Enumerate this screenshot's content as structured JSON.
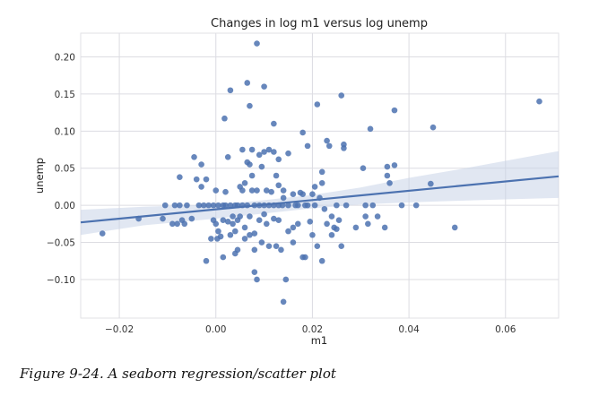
{
  "chart_data": {
    "type": "scatter",
    "title": "Changes in log m1 versus log unemp",
    "xlabel": "m1",
    "ylabel": "unemp",
    "xlim": [
      -0.028,
      0.071
    ],
    "ylim": [
      -0.152,
      0.232
    ],
    "xticks": [
      -0.02,
      0.0,
      0.02,
      0.04,
      0.06
    ],
    "xtick_labels": [
      "−0.02",
      "0.00",
      "0.02",
      "0.04",
      "0.06"
    ],
    "yticks": [
      -0.1,
      -0.05,
      0.0,
      0.05,
      0.1,
      0.15,
      0.2
    ],
    "ytick_labels": [
      "−0.10",
      "−0.05",
      "0.00",
      "0.05",
      "0.10",
      "0.15",
      "0.20"
    ],
    "grid": true,
    "colors": {
      "points": "#4c72b0",
      "line": "#4c72b0",
      "band": "#c9d4e8",
      "grid": "#dcdce2"
    },
    "regression": {
      "x": [
        -0.028,
        0.071
      ],
      "y": [
        -0.023,
        0.039
      ]
    },
    "confidence_band": {
      "x": [
        -0.028,
        -0.015,
        0.0,
        0.01,
        0.02,
        0.03,
        0.04,
        0.05,
        0.06,
        0.071
      ],
      "lower": [
        -0.04,
        -0.027,
        -0.018,
        -0.011,
        -0.004,
        0.001,
        0.004,
        0.006,
        0.008,
        0.01
      ],
      "upper": [
        -0.006,
        -0.002,
        0.001,
        0.007,
        0.014,
        0.024,
        0.037,
        0.048,
        0.06,
        0.073
      ]
    },
    "points": [
      [
        -0.0235,
        -0.038
      ],
      [
        -0.016,
        -0.018
      ],
      [
        -0.011,
        -0.018
      ],
      [
        -0.0105,
        0.0
      ],
      [
        -0.009,
        -0.025
      ],
      [
        -0.008,
        -0.025
      ],
      [
        -0.0085,
        0.0
      ],
      [
        -0.0075,
        0.0
      ],
      [
        -0.007,
        -0.02
      ],
      [
        -0.0065,
        -0.025
      ],
      [
        -0.0075,
        0.038
      ],
      [
        -0.006,
        0.0
      ],
      [
        -0.005,
        -0.018
      ],
      [
        -0.0045,
        0.065
      ],
      [
        -0.004,
        0.035
      ],
      [
        -0.0035,
        0.0
      ],
      [
        -0.003,
        0.055
      ],
      [
        -0.003,
        0.025
      ],
      [
        -0.0025,
        0.0
      ],
      [
        -0.002,
        0.035
      ],
      [
        -0.002,
        -0.075
      ],
      [
        -0.0015,
        0.0
      ],
      [
        -0.001,
        -0.045
      ],
      [
        -0.0005,
        -0.02
      ],
      [
        -0.0005,
        0.0
      ],
      [
        0.0,
        -0.025
      ],
      [
        0.0,
        0.02
      ],
      [
        0.0003,
        -0.045
      ],
      [
        0.0005,
        -0.035
      ],
      [
        0.0005,
        0.0
      ],
      [
        0.001,
        -0.042
      ],
      [
        0.0015,
        0.0
      ],
      [
        0.0015,
        -0.02
      ],
      [
        0.002,
        0.0
      ],
      [
        0.002,
        0.018
      ],
      [
        0.0025,
        -0.022
      ],
      [
        0.0015,
        -0.07
      ],
      [
        0.0018,
        0.117
      ],
      [
        0.0025,
        0.065
      ],
      [
        0.003,
        0.155
      ],
      [
        0.003,
        -0.04
      ],
      [
        0.003,
        0.0
      ],
      [
        0.0035,
        -0.015
      ],
      [
        0.0035,
        -0.025
      ],
      [
        0.004,
        -0.035
      ],
      [
        0.004,
        0.0
      ],
      [
        0.004,
        -0.065
      ],
      [
        0.0045,
        -0.06
      ],
      [
        0.0045,
        -0.02
      ],
      [
        0.0045,
        0.0
      ],
      [
        0.005,
        0.025
      ],
      [
        0.005,
        -0.015
      ],
      [
        0.0055,
        0.075
      ],
      [
        0.0055,
        0.02
      ],
      [
        0.0055,
        0.0
      ],
      [
        0.006,
        -0.045
      ],
      [
        0.006,
        -0.03
      ],
      [
        0.006,
        0.03
      ],
      [
        0.0065,
        0.165
      ],
      [
        0.0065,
        0.058
      ],
      [
        0.0065,
        0.0
      ],
      [
        0.007,
        0.134
      ],
      [
        0.007,
        -0.04
      ],
      [
        0.007,
        -0.015
      ],
      [
        0.007,
        0.055
      ],
      [
        0.0075,
        0.075
      ],
      [
        0.0075,
        0.04
      ],
      [
        0.0075,
        0.02
      ],
      [
        0.008,
        -0.09
      ],
      [
        0.008,
        -0.06
      ],
      [
        0.008,
        -0.038
      ],
      [
        0.008,
        0.0
      ],
      [
        0.0085,
        0.218
      ],
      [
        0.0085,
        -0.1
      ],
      [
        0.0085,
        0.02
      ],
      [
        0.009,
        0.068
      ],
      [
        0.009,
        -0.02
      ],
      [
        0.009,
        0.0
      ],
      [
        0.0095,
        0.052
      ],
      [
        0.0095,
        -0.05
      ],
      [
        0.01,
        0.16
      ],
      [
        0.01,
        0.072
      ],
      [
        0.01,
        -0.012
      ],
      [
        0.01,
        0.0
      ],
      [
        0.0105,
        -0.025
      ],
      [
        0.0105,
        0.02
      ],
      [
        0.011,
        0.075
      ],
      [
        0.011,
        -0.055
      ],
      [
        0.011,
        0.0
      ],
      [
        0.0115,
        0.018
      ],
      [
        0.012,
        0.11
      ],
      [
        0.012,
        0.072
      ],
      [
        0.012,
        -0.018
      ],
      [
        0.012,
        0.0
      ],
      [
        0.0125,
        -0.055
      ],
      [
        0.0125,
        0.04
      ],
      [
        0.013,
        0.062
      ],
      [
        0.013,
        0.027
      ],
      [
        0.013,
        -0.02
      ],
      [
        0.013,
        0.0
      ],
      [
        0.0135,
        -0.06
      ],
      [
        0.0138,
        0.0
      ],
      [
        0.014,
        -0.13
      ],
      [
        0.014,
        0.02
      ],
      [
        0.014,
        0.01
      ],
      [
        0.0145,
        -0.1
      ],
      [
        0.015,
        -0.035
      ],
      [
        0.015,
        0.0
      ],
      [
        0.015,
        0.07
      ],
      [
        0.016,
        -0.05
      ],
      [
        0.016,
        -0.03
      ],
      [
        0.016,
        0.015
      ],
      [
        0.0165,
        0.0
      ],
      [
        0.017,
        -0.025
      ],
      [
        0.017,
        0.0
      ],
      [
        0.0175,
        0.017
      ],
      [
        0.018,
        -0.07
      ],
      [
        0.018,
        0.098
      ],
      [
        0.018,
        0.015
      ],
      [
        0.0185,
        -0.07
      ],
      [
        0.0185,
        0.0
      ],
      [
        0.019,
        0.08
      ],
      [
        0.019,
        0.0
      ],
      [
        0.0195,
        -0.022
      ],
      [
        0.02,
        -0.04
      ],
      [
        0.02,
        0.015
      ],
      [
        0.0205,
        0.025
      ],
      [
        0.0205,
        0.0
      ],
      [
        0.021,
        -0.055
      ],
      [
        0.021,
        0.136
      ],
      [
        0.0215,
        0.01
      ],
      [
        0.022,
        -0.075
      ],
      [
        0.022,
        0.045
      ],
      [
        0.022,
        0.03
      ],
      [
        0.0225,
        -0.005
      ],
      [
        0.023,
        -0.025
      ],
      [
        0.023,
        0.087
      ],
      [
        0.0235,
        0.08
      ],
      [
        0.024,
        -0.04
      ],
      [
        0.024,
        -0.015
      ],
      [
        0.0245,
        -0.03
      ],
      [
        0.025,
        -0.032
      ],
      [
        0.025,
        0.0
      ],
      [
        0.0255,
        -0.02
      ],
      [
        0.026,
        0.148
      ],
      [
        0.026,
        -0.055
      ],
      [
        0.0265,
        0.082
      ],
      [
        0.0265,
        0.077
      ],
      [
        0.027,
        0.0
      ],
      [
        0.029,
        -0.03
      ],
      [
        0.031,
        0.0
      ],
      [
        0.0305,
        0.05
      ],
      [
        0.031,
        -0.015
      ],
      [
        0.0315,
        -0.025
      ],
      [
        0.032,
        0.103
      ],
      [
        0.0325,
        0.0
      ],
      [
        0.0335,
        -0.015
      ],
      [
        0.035,
        -0.03
      ],
      [
        0.0355,
        0.052
      ],
      [
        0.0355,
        0.04
      ],
      [
        0.036,
        0.03
      ],
      [
        0.037,
        0.128
      ],
      [
        0.037,
        0.054
      ],
      [
        0.0385,
        0.0
      ],
      [
        0.0415,
        0.0
      ],
      [
        0.0445,
        0.029
      ],
      [
        0.045,
        0.105
      ],
      [
        0.0495,
        -0.03
      ],
      [
        0.067,
        0.14
      ]
    ]
  },
  "caption": "Figure 9-24. A seaborn regression/scatter plot"
}
